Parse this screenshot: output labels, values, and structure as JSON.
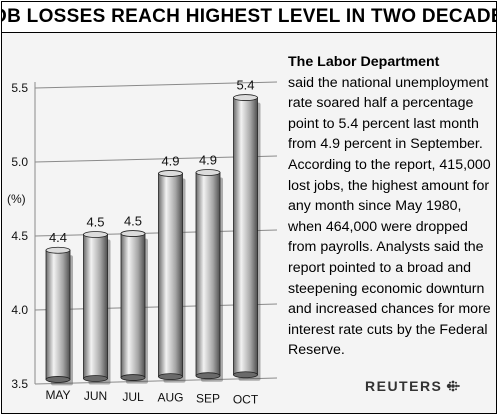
{
  "header": {
    "title": "JOB LOSSES REACH HIGHEST LEVEL IN TWO DECADES"
  },
  "chart_data": {
    "type": "bar",
    "title": "JOB LOSSES REACH HIGHEST LEVEL IN TWO DECADES",
    "xlabel": "",
    "ylabel": "(%)",
    "categories": [
      "MAY",
      "JUN",
      "JUL",
      "AUG",
      "SEP",
      "OCT"
    ],
    "values": [
      4.4,
      4.5,
      4.5,
      4.9,
      4.9,
      5.4
    ],
    "value_labels": [
      "4.4",
      "4.5",
      "4.5",
      "4.9",
      "4.9",
      "5.4"
    ],
    "ylim": [
      3.5,
      5.6
    ],
    "yticks": [
      3.5,
      4.0,
      4.5,
      5.0,
      5.5
    ],
    "ytick_labels": [
      "3.5",
      "4.0",
      "4.5",
      "5.0",
      "5.5"
    ],
    "grid": true,
    "legend": "none",
    "style": "3d-cylinder-bars",
    "colors": {
      "bar": "#aaaaaa",
      "bar_highlight": "#f2f2f2",
      "bar_shadow": "#555555",
      "grid": "#8a8a8a",
      "background": "#f4f4f4"
    }
  },
  "description": {
    "lead": "The Labor Department",
    "body": "said the national unemployment rate soared half a percentage point to 5.4 percent last month from 4.9 percent in September. According to the report, 415,000 lost jobs, the highest amount for any month since May 1980, when 464,000 were dropped from payrolls.  Analysts said the report pointed to a broad and steepening economic downturn and increased chances for more interest rate cuts by the Federal Reserve."
  },
  "credit": {
    "text": "REUTERS",
    "icon": "reuters-dot-logo-icon"
  }
}
